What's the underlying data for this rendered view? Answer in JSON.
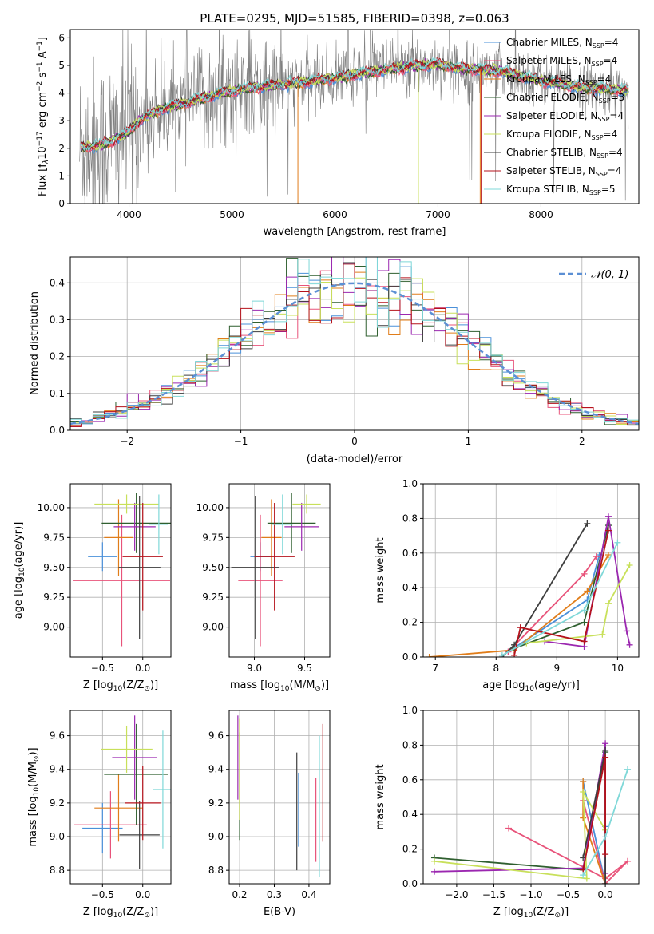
{
  "figure": {
    "colors": [
      "#4a90d9",
      "#e8537a",
      "#e07d1a",
      "#2f5f2f",
      "#9b27b0",
      "#c8e05a",
      "#3d3d3d",
      "#b5121b",
      "#7fd8d8"
    ],
    "accent_colors": {
      "spectrum": "#7f7f7f",
      "gauss": "#5b8fd4",
      "grid": "#b0b0b0"
    }
  },
  "chart_data": [
    {
      "type": "line",
      "id": "spectrum",
      "title": "PLATE=0295, MJD=51585, FIBERID=0398, z=0.063",
      "xlabel": "wavelength [Angstrom, rest frame]",
      "ylabel": "Flux [f",
      "ylabel_sub": "λ",
      "ylabel_rest": "10",
      "ylabel_exp": "−17",
      "ylabel_units": " erg cm",
      "ylabel_units_exp": "−2",
      "ylabel_s": " s",
      "ylabel_s_exp": "−1",
      "ylabel_A": " A",
      "ylabel_A_exp": "−1",
      "ylabel_close": "]",
      "xlim": [
        3430,
        8950
      ],
      "ylim": [
        0,
        6.3
      ],
      "xticks": [
        4000,
        5000,
        6000,
        7000,
        8000
      ],
      "yticks": [
        0,
        1,
        2,
        3,
        4,
        5,
        6
      ],
      "continuum_points": [
        [
          3500,
          2.0
        ],
        [
          3700,
          2.1
        ],
        [
          3800,
          2.2
        ],
        [
          4000,
          2.6
        ],
        [
          4100,
          3.0
        ],
        [
          4300,
          3.4
        ],
        [
          4600,
          3.7
        ],
        [
          4900,
          4.0
        ],
        [
          5200,
          4.2
        ],
        [
          5600,
          4.35
        ],
        [
          6000,
          4.55
        ],
        [
          6400,
          4.8
        ],
        [
          6800,
          5.0
        ],
        [
          7000,
          5.05
        ],
        [
          7200,
          4.9
        ],
        [
          7400,
          4.85
        ],
        [
          7600,
          4.8
        ],
        [
          8000,
          4.45
        ],
        [
          8400,
          4.2
        ],
        [
          8850,
          4.1
        ]
      ],
      "legend": [
        {
          "name": "Chabrier MILES, N",
          "sub": "SSP",
          "suffix": "=4"
        },
        {
          "name": "Salpeter MILES, N",
          "sub": "SSP",
          "suffix": "=4"
        },
        {
          "name": "Kroupa MILES, N",
          "sub": "SSP",
          "suffix": "=4"
        },
        {
          "name": "Chabrier ELODIE, N",
          "sub": "SSP",
          "suffix": "=3"
        },
        {
          "name": "Salpeter ELODIE, N",
          "sub": "SSP",
          "suffix": "=4"
        },
        {
          "name": "Kroupa ELODIE, N",
          "sub": "SSP",
          "suffix": "=4"
        },
        {
          "name": "Chabrier STELIB, N",
          "sub": "SSP",
          "suffix": "=4"
        },
        {
          "name": "Salpeter STELIB, N",
          "sub": "SSP",
          "suffix": "=4"
        },
        {
          "name": "Kroupa STELIB, N",
          "sub": "SSP",
          "suffix": "=5"
        }
      ],
      "legend_placement": "upper-right",
      "grid": false
    },
    {
      "type": "line",
      "id": "residuals",
      "xlabel": "(data-model)/error",
      "ylabel": "Normed distribution",
      "xlim": [
        -2.5,
        2.5
      ],
      "ylim": [
        0,
        0.47
      ],
      "xticks": [
        -2,
        -1,
        0,
        1,
        2
      ],
      "xtick_labels": [
        "−2",
        "−1",
        "0",
        "1",
        "2"
      ],
      "yticks": [
        0,
        0.1,
        0.2,
        0.3,
        0.4
      ],
      "ytick_labels": [
        "0.0",
        "0.1",
        "0.2",
        "0.3",
        "0.4"
      ],
      "bin_width": 0.1,
      "legend": [
        {
          "name": "𝒩(0, 1)"
        }
      ],
      "legend_placement": "upper-right",
      "grid": true
    },
    {
      "type": "scatter",
      "id": "z-age",
      "xlabel": "Z [log",
      "xlabel_sub": "10",
      "xlabel_rest": "(Z/Z",
      "xlabel_sub2": "⊙",
      "xlabel_close": ")]",
      "ylabel": "age  [log",
      "ylabel_sub": "10",
      "ylabel_rest": "(age/yr)]",
      "xlim": [
        -0.9,
        0.35
      ],
      "ylim": [
        8.75,
        10.2
      ],
      "xticks": [
        -0.5,
        0.0
      ],
      "xtick_labels": [
        "−0.5",
        "0.0"
      ],
      "yticks": [
        9.0,
        9.25,
        9.5,
        9.75,
        10.0
      ],
      "ytick_labels": [
        "9.00",
        "9.25",
        "9.50",
        "9.75",
        "10.00"
      ],
      "points": [
        {
          "x": -0.5,
          "xerr": 0.18,
          "y": 9.59,
          "yerr": 0.12
        },
        {
          "x": -0.26,
          "xerr": 0.6,
          "y": 9.39,
          "yerr": 0.55
        },
        {
          "x": -0.3,
          "xerr": 0.18,
          "y": 9.75,
          "yerr": 0.32
        },
        {
          "x": -0.08,
          "xerr": 0.43,
          "y": 9.87,
          "yerr": 0.25
        },
        {
          "x": -0.1,
          "xerr": 0.26,
          "y": 9.84,
          "yerr": 0.2
        },
        {
          "x": -0.2,
          "xerr": 0.4,
          "y": 10.03,
          "yerr": 0.08
        },
        {
          "x": -0.04,
          "xerr": 0.26,
          "y": 9.5,
          "yerr": 0.6
        },
        {
          "x": 0.0,
          "xerr": 0.25,
          "y": 9.59,
          "yerr": 0.45
        },
        {
          "x": 0.2,
          "xerr": 0.12,
          "y": 9.86,
          "yerr": 0.25
        }
      ],
      "grid": true
    },
    {
      "type": "scatter",
      "id": "mass-age",
      "xlabel": "mass [log",
      "xlabel_sub": "10",
      "xlabel_rest": "(M/M",
      "xlabel_sub2": "⊙",
      "xlabel_close": ")]",
      "xlim": [
        8.75,
        9.75
      ],
      "ylim": [
        8.75,
        10.2
      ],
      "xticks": [
        9.0,
        9.5
      ],
      "xtick_labels": [
        "9.0",
        "9.5"
      ],
      "yticks": [
        9.0,
        9.25,
        9.5,
        9.75,
        10.0
      ],
      "ytick_labels": [
        "9.00",
        "9.25",
        "9.50",
        "9.75",
        "10.00"
      ],
      "points": [
        {
          "x": 9.06,
          "xerr": 0.1,
          "y": 9.59,
          "yerr": 0.12
        },
        {
          "x": 9.06,
          "xerr": 0.22,
          "y": 9.39,
          "yerr": 0.55
        },
        {
          "x": 9.17,
          "xerr": 0.1,
          "y": 9.75,
          "yerr": 0.32
        },
        {
          "x": 9.37,
          "xerr": 0.24,
          "y": 9.87,
          "yerr": 0.25
        },
        {
          "x": 9.47,
          "xerr": 0.17,
          "y": 9.84,
          "yerr": 0.2
        },
        {
          "x": 9.52,
          "xerr": 0.14,
          "y": 10.03,
          "yerr": 0.08
        },
        {
          "x": 9.01,
          "xerr": 0.24,
          "y": 9.5,
          "yerr": 0.6
        },
        {
          "x": 9.2,
          "xerr": 0.2,
          "y": 9.59,
          "yerr": 0.45
        },
        {
          "x": 9.28,
          "xerr": 0.1,
          "y": 9.86,
          "yerr": 0.25
        }
      ],
      "grid": true
    },
    {
      "type": "line",
      "id": "age-weight",
      "xlabel": "age  [log",
      "xlabel_sub": "10",
      "xlabel_rest": "(age/yr)]",
      "ylabel": "mass weight",
      "xlim": [
        6.8,
        10.35
      ],
      "ylim": [
        0,
        1.0
      ],
      "xticks": [
        7,
        8,
        9,
        10
      ],
      "xtick_labels": [
        "7",
        "8",
        "9",
        "10"
      ],
      "yticks": [
        0,
        0.2,
        0.4,
        0.6,
        0.8,
        1.0
      ],
      "ytick_labels": [
        "0.0",
        "0.2",
        "0.4",
        "0.6",
        "0.8",
        "1.0"
      ],
      "series": [
        {
          "points": [
            [
              8.2,
              0.03
            ],
            [
              9.5,
              0.33
            ],
            [
              9.7,
              0.59
            ]
          ]
        },
        {
          "points": [
            [
              8.2,
              0.03
            ],
            [
              9.45,
              0.48
            ],
            [
              9.65,
              0.58
            ]
          ]
        },
        {
          "points": [
            [
              6.9,
              0.0
            ],
            [
              8.3,
              0.04
            ],
            [
              9.5,
              0.38
            ],
            [
              9.85,
              0.59
            ]
          ]
        },
        {
          "points": [
            [
              8.3,
              0.05
            ],
            [
              9.45,
              0.2
            ],
            [
              9.85,
              0.76
            ]
          ]
        },
        {
          "points": [
            [
              8.8,
              0.09
            ],
            [
              9.45,
              0.06
            ],
            [
              9.85,
              0.81
            ],
            [
              10.15,
              0.15
            ],
            [
              10.2,
              0.07
            ]
          ]
        },
        {
          "points": [
            [
              8.5,
              0.08
            ],
            [
              9.75,
              0.13
            ],
            [
              9.85,
              0.31
            ],
            [
              10.2,
              0.53
            ]
          ]
        },
        {
          "points": [
            [
              8.1,
              0.0
            ],
            [
              8.3,
              0.07
            ],
            [
              9.5,
              0.77
            ]
          ]
        },
        {
          "points": [
            [
              8.3,
              0.01
            ],
            [
              8.4,
              0.17
            ],
            [
              9.45,
              0.09
            ],
            [
              9.85,
              0.73
            ]
          ]
        },
        {
          "points": [
            [
              8.1,
              0.01
            ],
            [
              9.45,
              0.27
            ],
            [
              10.0,
              0.66
            ]
          ]
        }
      ],
      "grid": true
    },
    {
      "type": "scatter",
      "id": "z-mass",
      "xlabel": "Z [log",
      "xlabel_sub": "10",
      "xlabel_rest": "(Z/Z",
      "xlabel_sub2": "⊙",
      "xlabel_close": ")]",
      "ylabel": "mass [log",
      "ylabel_sub": "10",
      "ylabel_rest": "(M/M",
      "ylabel_sub2": "⊙",
      "ylabel_close": ")]",
      "xlim": [
        -0.9,
        0.35
      ],
      "ylim": [
        8.72,
        9.75
      ],
      "xticks": [
        -0.5,
        0.0
      ],
      "xtick_labels": [
        "−0.5",
        "0.0"
      ],
      "yticks": [
        8.8,
        9.0,
        9.2,
        9.4,
        9.6
      ],
      "ytick_labels": [
        "8.8",
        "9.0",
        "9.2",
        "9.4",
        "9.6"
      ],
      "points": [
        {
          "x": -0.5,
          "xerr": 0.25,
          "y": 9.05,
          "yerr": 0.15
        },
        {
          "x": -0.4,
          "xerr": 0.45,
          "y": 9.07,
          "yerr": 0.2
        },
        {
          "x": -0.3,
          "xerr": 0.3,
          "y": 9.17,
          "yerr": 0.2
        },
        {
          "x": -0.08,
          "xerr": 0.4,
          "y": 9.37,
          "yerr": 0.3
        },
        {
          "x": -0.1,
          "xerr": 0.28,
          "y": 9.47,
          "yerr": 0.25
        },
        {
          "x": -0.2,
          "xerr": 0.32,
          "y": 9.52,
          "yerr": 0.14
        },
        {
          "x": -0.04,
          "xerr": 0.25,
          "y": 9.01,
          "yerr": 0.2
        },
        {
          "x": 0.0,
          "xerr": 0.22,
          "y": 9.2,
          "yerr": 0.22
        },
        {
          "x": 0.25,
          "xerr": 0.12,
          "y": 9.28,
          "yerr": 0.35
        }
      ],
      "grid": true
    },
    {
      "type": "scatter",
      "id": "ebv-mass",
      "xlabel": "E(B-V)",
      "xlim": [
        0.17,
        0.46
      ],
      "ylim": [
        8.72,
        9.75
      ],
      "xticks": [
        0.2,
        0.3,
        0.4
      ],
      "xtick_labels": [
        "0.2",
        "0.3",
        "0.4"
      ],
      "yticks": [
        8.8,
        9.0,
        9.2,
        9.4,
        9.6
      ],
      "ytick_labels": [
        "8.8",
        "9.0",
        "9.2",
        "9.4",
        "9.6"
      ],
      "points": [
        {
          "x": 0.37,
          "y": 9.16,
          "yerr": 0.22
        },
        {
          "x": 0.42,
          "y": 9.1,
          "yerr": 0.25
        },
        {
          "x": 0.2,
          "y": 9.4,
          "yerr": 0.3
        },
        {
          "x": 0.2,
          "y": 9.3,
          "yerr": 0.32
        },
        {
          "x": 0.195,
          "y": 9.47,
          "yerr": 0.25
        },
        {
          "x": 0.2,
          "y": 9.4,
          "yerr": 0.3
        },
        {
          "x": 0.365,
          "y": 9.15,
          "yerr": 0.35
        },
        {
          "x": 0.44,
          "y": 9.32,
          "yerr": 0.35
        },
        {
          "x": 0.43,
          "y": 9.18,
          "yerr": 0.42
        }
      ],
      "grid": true
    },
    {
      "type": "line",
      "id": "z-weight",
      "xlabel": "Z [log",
      "xlabel_sub": "10",
      "xlabel_rest": "(Z/Z",
      "xlabel_sub2": "⊙",
      "xlabel_close": ")]",
      "ylabel": "mass weight",
      "xlim": [
        -2.45,
        0.45
      ],
      "ylim": [
        0,
        1.0
      ],
      "xticks": [
        -2.0,
        -1.5,
        -1.0,
        -0.5,
        0.0
      ],
      "xtick_labels": [
        "−2.0",
        "−1.5",
        "−1.0",
        "−0.5",
        "0.0"
      ],
      "yticks": [
        0,
        0.2,
        0.4,
        0.6,
        0.8,
        1.0
      ],
      "ytick_labels": [
        "0.0",
        "0.2",
        "0.4",
        "0.6",
        "0.8",
        "1.0"
      ],
      "series": [
        {
          "points": [
            [
              -0.3,
              0.59
            ],
            [
              0.0,
              0.0
            ],
            [
              0.0,
              0.33
            ]
          ]
        },
        {
          "points": [
            [
              -1.3,
              0.32
            ],
            [
              0.0,
              0.03
            ],
            [
              0.3,
              0.13
            ],
            [
              0.0,
              0.0
            ],
            [
              -0.3,
              0.48
            ]
          ]
        },
        {
          "points": [
            [
              -0.3,
              0.59
            ],
            [
              -0.3,
              0.38
            ],
            [
              0.0,
              0.0
            ],
            [
              0.0,
              0.04
            ]
          ]
        },
        {
          "points": [
            [
              -2.3,
              0.15
            ],
            [
              -0.3,
              0.08
            ],
            [
              0.0,
              0.76
            ]
          ]
        },
        {
          "points": [
            [
              -2.3,
              0.07
            ],
            [
              -0.3,
              0.09
            ],
            [
              0.0,
              0.81
            ],
            [
              0.0,
              0.06
            ]
          ]
        },
        {
          "points": [
            [
              -2.3,
              0.13
            ],
            [
              -0.25,
              0.03
            ],
            [
              -0.3,
              0.53
            ],
            [
              0.0,
              0.31
            ]
          ]
        },
        {
          "points": [
            [
              -0.3,
              0.15
            ],
            [
              0.0,
              0.77
            ],
            [
              0.0,
              0.0
            ]
          ]
        },
        {
          "points": [
            [
              -0.3,
              0.08
            ],
            [
              0.0,
              0.73
            ],
            [
              0.0,
              0.17
            ]
          ]
        },
        {
          "points": [
            [
              -0.3,
              0.05
            ],
            [
              0.0,
              0.27
            ],
            [
              0.3,
              0.66
            ]
          ]
        }
      ],
      "grid": true
    }
  ]
}
